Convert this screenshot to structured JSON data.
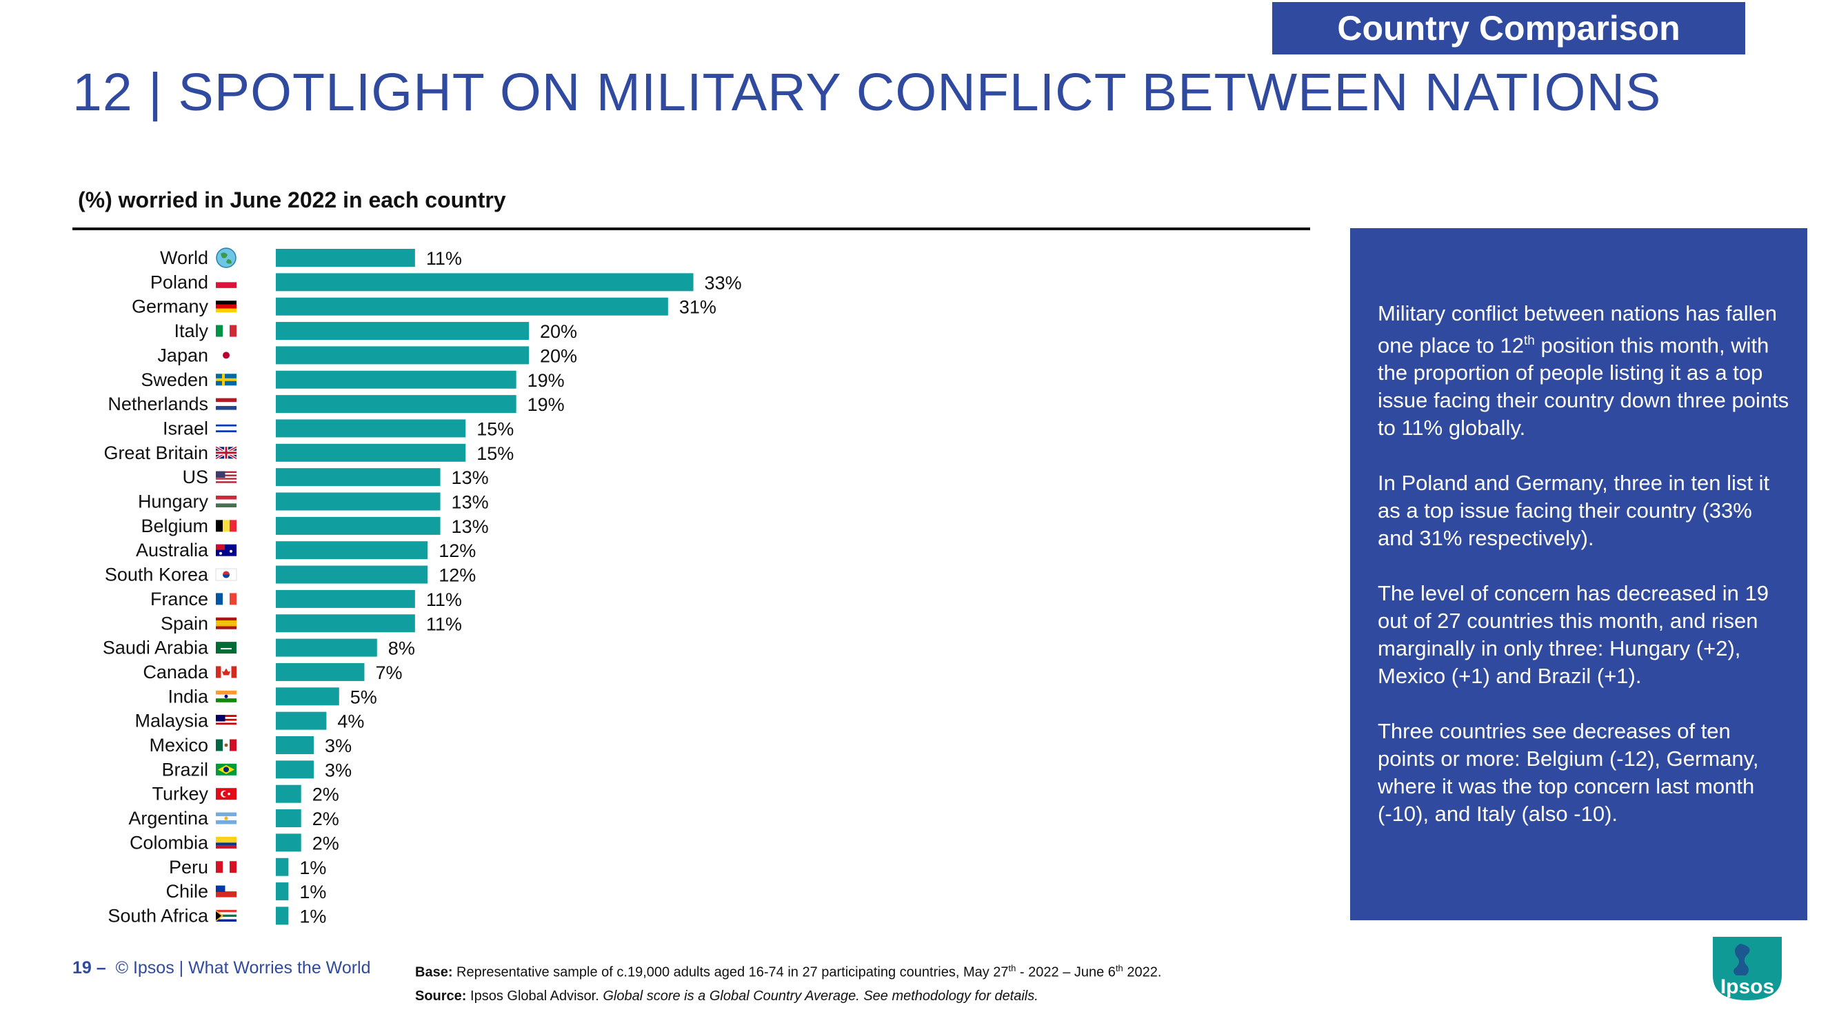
{
  "tag": "Country Comparison",
  "title": "12 | SPOTLIGHT ON MILITARY CONFLICT BETWEEN NATIONS",
  "subtitle": "(%) worried in June 2022 in each country",
  "chart_data": {
    "type": "bar",
    "orientation": "horizontal",
    "bar_color": "#119e9e",
    "categories": [
      "World",
      "Poland",
      "Germany",
      "Italy",
      "Japan",
      "Sweden",
      "Netherlands",
      "Israel",
      "Great Britain",
      "US",
      "Hungary",
      "Belgium",
      "Australia",
      "South Korea",
      "France",
      "Spain",
      "Saudi Arabia",
      "Canada",
      "India",
      "Malaysia",
      "Mexico",
      "Brazil",
      "Turkey",
      "Argentina",
      "Colombia",
      "Peru",
      "Chile",
      "South Africa"
    ],
    "values": [
      11,
      33,
      31,
      20,
      20,
      19,
      19,
      15,
      15,
      13,
      13,
      13,
      12,
      12,
      11,
      11,
      8,
      7,
      5,
      4,
      3,
      3,
      2,
      2,
      2,
      1,
      1,
      1
    ],
    "value_suffix": "%",
    "flags": [
      "globe-icon",
      "flag-poland-icon",
      "flag-germany-icon",
      "flag-italy-icon",
      "flag-japan-icon",
      "flag-sweden-icon",
      "flag-netherlands-icon",
      "flag-israel-icon",
      "flag-great-britain-icon",
      "flag-us-icon",
      "flag-hungary-icon",
      "flag-belgium-icon",
      "flag-australia-icon",
      "flag-south-korea-icon",
      "flag-france-icon",
      "flag-spain-icon",
      "flag-saudi-arabia-icon",
      "flag-canada-icon",
      "flag-india-icon",
      "flag-malaysia-icon",
      "flag-mexico-icon",
      "flag-brazil-icon",
      "flag-turkey-icon",
      "flag-argentina-icon",
      "flag-colombia-icon",
      "flag-peru-icon",
      "flag-chile-icon",
      "flag-south-africa-icon"
    ]
  },
  "panel": {
    "p1_a": "Military conflict between nations has fallen one place to 12",
    "p1_sup": "th",
    "p1_b": " position this month, with the proportion of people listing it as a top issue facing their country down three points to 11% globally.",
    "p2": "In Poland and Germany, three in ten list it as a top issue facing their country (33% and 31% respectively).",
    "p3": "The level of concern has decreased in 19 out of 27 countries this month, and risen marginally in only three: Hungary (+2), Mexico (+1) and Brazil (+1).",
    "p4": "Three countries see decreases of ten points or more: Belgium (-12), Germany, where it was the top concern last month (-10), and Italy (also -10)."
  },
  "footer": {
    "page_number": "19 –",
    "credit": "© Ipsos | What Worries the World",
    "base_label": "Base:",
    "base_a": " Representative sample of c.19,000 adults aged 16-74 in 27 participating countries, May 27",
    "base_sup": "th",
    "base_b": " - 2022 – June 6",
    "base_sup2": "th",
    "base_c": " 2022.",
    "source_label": "Source:",
    "source_text": " Ipsos Global Advisor.",
    "source_italic": " Global score is a Global Country Average. See methodology for details."
  },
  "logo_text": "Ipsos",
  "colors": {
    "accent": "#2f4a9e",
    "bar": "#119e9e",
    "logo": "#0f9a96"
  }
}
